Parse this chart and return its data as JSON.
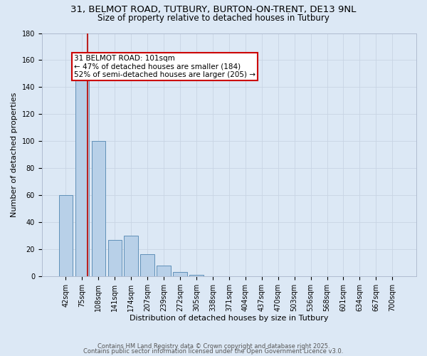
{
  "title_line1": "31, BELMOT ROAD, TUTBURY, BURTON-ON-TRENT, DE13 9NL",
  "title_line2": "Size of property relative to detached houses in Tutbury",
  "xlabel": "Distribution of detached houses by size in Tutbury",
  "ylabel": "Number of detached properties",
  "background_color": "#dce8f5",
  "bar_color": "#b8d0e8",
  "bar_edge_color": "#6090b8",
  "categories": [
    "42sqm",
    "75sqm",
    "108sqm",
    "141sqm",
    "174sqm",
    "207sqm",
    "239sqm",
    "272sqm",
    "305sqm",
    "338sqm",
    "371sqm",
    "404sqm",
    "437sqm",
    "470sqm",
    "503sqm",
    "536sqm",
    "568sqm",
    "601sqm",
    "634sqm",
    "667sqm",
    "700sqm"
  ],
  "values": [
    60,
    147,
    100,
    27,
    30,
    16,
    8,
    3,
    1,
    0,
    0,
    0,
    0,
    0,
    0,
    0,
    0,
    0,
    0,
    0,
    0
  ],
  "ylim": [
    0,
    180
  ],
  "yticks": [
    0,
    20,
    40,
    60,
    80,
    100,
    120,
    140,
    160,
    180
  ],
  "annotation_line1": "31 BELMOT ROAD: 101sqm",
  "annotation_line2": "← 47% of detached houses are smaller (184)",
  "annotation_line3": "52% of semi-detached houses are larger (205) →",
  "annotation_box_color": "#ffffff",
  "annotation_box_edge_color": "#cc0000",
  "vline_color": "#bb2222",
  "vline_x": 1.35,
  "footnote1": "Contains HM Land Registry data © Crown copyright and database right 2025.",
  "footnote2": "Contains public sector information licensed under the Open Government Licence v3.0.",
  "title_fontsize": 9.5,
  "subtitle_fontsize": 8.5,
  "axis_label_fontsize": 8,
  "tick_fontsize": 7,
  "annotation_fontsize": 7.5,
  "footnote_fontsize": 6
}
